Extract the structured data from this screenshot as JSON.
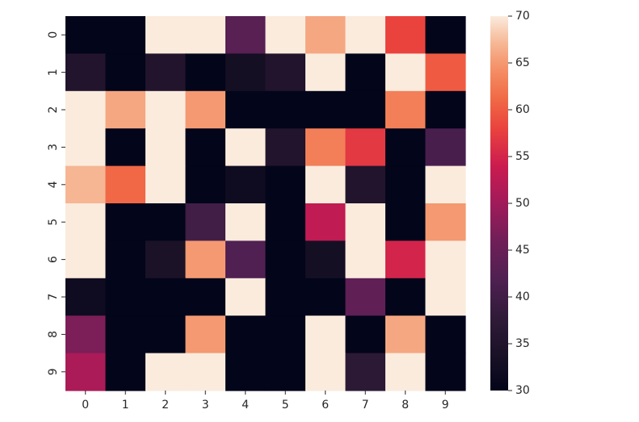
{
  "chart_data": {
    "type": "heatmap",
    "x_categories": [
      "0",
      "1",
      "2",
      "3",
      "4",
      "5",
      "6",
      "7",
      "8",
      "9"
    ],
    "y_categories": [
      "0",
      "1",
      "2",
      "3",
      "4",
      "5",
      "6",
      "7",
      "8",
      "9"
    ],
    "values": [
      [
        30,
        30,
        70,
        70,
        43,
        70,
        66,
        70,
        58,
        30
      ],
      [
        35,
        30,
        35,
        30,
        33,
        35,
        70,
        30,
        70,
        60
      ],
      [
        70,
        66,
        70,
        65,
        30,
        30,
        30,
        30,
        63,
        30
      ],
      [
        70,
        30,
        70,
        30,
        70,
        35,
        63,
        57,
        30,
        41
      ],
      [
        67,
        61,
        70,
        30,
        32,
        30,
        70,
        35,
        30,
        70
      ],
      [
        70,
        30,
        30,
        40,
        70,
        30,
        53,
        70,
        30,
        65
      ],
      [
        70,
        30,
        34,
        65,
        42,
        30,
        33,
        70,
        55,
        70
      ],
      [
        32,
        30,
        30,
        30,
        70,
        30,
        30,
        44,
        30,
        70
      ],
      [
        47,
        30,
        30,
        65,
        30,
        30,
        70,
        30,
        66,
        30
      ],
      [
        51,
        30,
        70,
        70,
        30,
        30,
        70,
        37,
        70,
        30
      ]
    ],
    "vmin": 30,
    "vmax": 70,
    "colorbar_ticks": [
      "30",
      "35",
      "40",
      "45",
      "50",
      "55",
      "60",
      "65",
      "70"
    ],
    "colormap": "rocket",
    "legend": "colorbar-right"
  }
}
